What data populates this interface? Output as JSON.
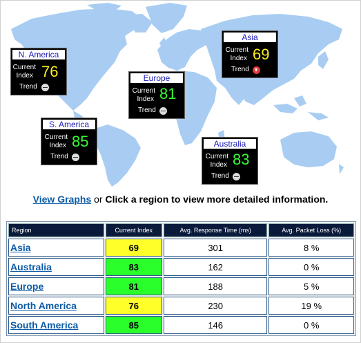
{
  "tiles": {
    "north_america": {
      "region": "N. America",
      "label_current": "Current",
      "label_index": "Index",
      "index": "76",
      "label_trend": "Trend",
      "index_color": "yellow",
      "trend_icon": "neutral-trend-icon"
    },
    "south_america": {
      "region": "S. America",
      "label_current": "Current",
      "label_index": "Index",
      "index": "85",
      "label_trend": "Trend",
      "index_color": "green",
      "trend_icon": "neutral-trend-icon"
    },
    "europe": {
      "region": "Europe",
      "label_current": "Current",
      "label_index": "Index",
      "index": "81",
      "label_trend": "Trend",
      "index_color": "green",
      "trend_icon": "neutral-trend-icon"
    },
    "asia": {
      "region": "Asia",
      "label_current": "Current",
      "label_index": "Index",
      "index": "69",
      "label_trend": "Trend",
      "index_color": "yellow",
      "trend_icon": "down-trend-icon"
    },
    "australia": {
      "region": "Australia",
      "label_current": "Current",
      "label_index": "Index",
      "index": "83",
      "label_trend": "Trend",
      "index_color": "green",
      "trend_icon": "neutral-trend-icon"
    }
  },
  "prompt": {
    "view_graphs": "View Graphs",
    "or": "or",
    "instruction": "Click a region to view more detailed information."
  },
  "table": {
    "headers": [
      "Region",
      "Current Index",
      "Avg. Response Time (ms)",
      "Avg. Packet Loss (%)"
    ],
    "rows": [
      {
        "region": "Asia",
        "index": "69",
        "index_color": "yellow",
        "response": "301",
        "loss": "8 %"
      },
      {
        "region": "Australia",
        "index": "83",
        "index_color": "green",
        "response": "162",
        "loss": "0 %"
      },
      {
        "region": "Europe",
        "index": "81",
        "index_color": "green",
        "response": "188",
        "loss": "5 %"
      },
      {
        "region": "North America",
        "index": "76",
        "index_color": "yellow",
        "response": "230",
        "loss": "19 %"
      },
      {
        "region": "South America",
        "index": "85",
        "index_color": "green",
        "response": "146",
        "loss": "0 %"
      }
    ]
  },
  "colors": {
    "map_land": "#a9cdf2",
    "index_green": "#2bff2b",
    "index_yellow": "#ffff2a",
    "header_bg": "#0a1a3a",
    "link": "#0b5ba8"
  }
}
